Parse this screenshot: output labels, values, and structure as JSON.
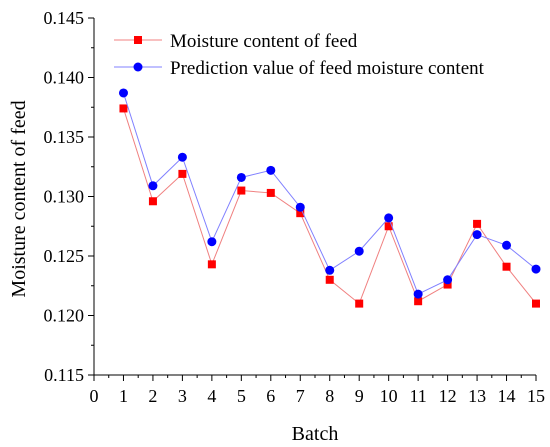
{
  "chart_data": {
    "type": "line",
    "title": "",
    "xlabel": "Batch",
    "ylabel": "Moisture content of feed",
    "xlim": [
      0,
      15
    ],
    "ylim": [
      0.115,
      0.145
    ],
    "x_ticks": [
      "0",
      "1",
      "2",
      "3",
      "4",
      "5",
      "6",
      "7",
      "8",
      "9",
      "10",
      "11",
      "12",
      "13",
      "14",
      "15"
    ],
    "y_ticks": [
      "0.115",
      "0.120",
      "0.125",
      "0.130",
      "0.135",
      "0.140",
      "0.145"
    ],
    "grid": false,
    "legend_position": "top-left",
    "x": [
      1,
      2,
      3,
      4,
      5,
      6,
      7,
      8,
      9,
      10,
      11,
      12,
      13,
      14,
      15
    ],
    "series": [
      {
        "name": "Moisture content of feed",
        "color": "#ff0000",
        "line_color": "#f08080",
        "marker": "square",
        "values": [
          0.1374,
          0.1296,
          0.1319,
          0.1243,
          0.1305,
          0.1303,
          0.1286,
          0.123,
          0.121,
          0.1275,
          0.1212,
          0.1226,
          0.1277,
          0.1241,
          0.121
        ]
      },
      {
        "name": "Prediction value of feed moisture content",
        "color": "#0000ff",
        "line_color": "#8080ff",
        "marker": "circle",
        "values": [
          0.1387,
          0.1309,
          0.1333,
          0.1262,
          0.1316,
          0.1322,
          0.1291,
          0.1238,
          0.1254,
          0.1282,
          0.1218,
          0.123,
          0.1268,
          0.1259,
          0.1239
        ]
      }
    ]
  }
}
